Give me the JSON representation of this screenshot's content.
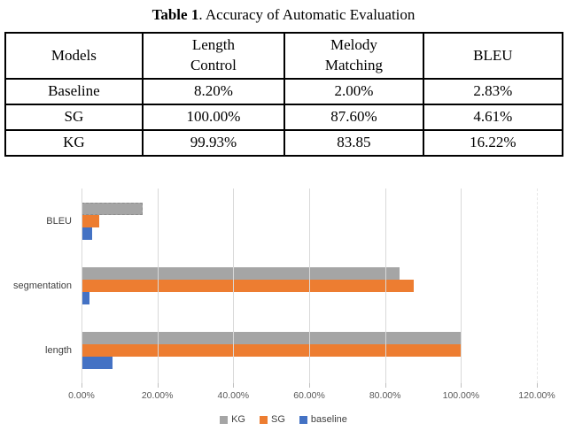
{
  "table": {
    "caption_label": "Table 1",
    "caption_text": ". Accuracy of Automatic Evaluation",
    "headers": [
      [
        "Models"
      ],
      [
        "Length",
        "Control"
      ],
      [
        "Melody",
        "Matching"
      ],
      [
        "BLEU"
      ]
    ],
    "rows": [
      {
        "model": "Baseline",
        "length_control": "8.20%",
        "melody_matching": "2.00%",
        "bleu": "2.83%"
      },
      {
        "model": "SG",
        "length_control": "100.00%",
        "melody_matching": "87.60%",
        "bleu": "4.61%"
      },
      {
        "model": "KG",
        "length_control": "99.93%",
        "melody_matching": "83.85",
        "bleu": "16.22%"
      }
    ]
  },
  "chart_data": {
    "type": "bar",
    "orientation": "horizontal",
    "title": "",
    "xlabel": "",
    "ylabel": "",
    "categories": [
      "BLEU",
      "segmentation",
      "length"
    ],
    "series": [
      {
        "name": "KG",
        "color": "#a5a5a5",
        "values": [
          16.22,
          83.85,
          99.93
        ]
      },
      {
        "name": "SG",
        "color": "#ed7d31",
        "values": [
          4.61,
          87.6,
          100.0
        ]
      },
      {
        "name": "baseline",
        "color": "#4472c4",
        "values": [
          2.83,
          2.0,
          8.2
        ]
      }
    ],
    "xlim": [
      0,
      120
    ],
    "x_ticks": [
      "0.00%",
      "20.00%",
      "40.00%",
      "60.00%",
      "80.00%",
      "100.00%",
      "120.00%"
    ],
    "grid": true,
    "legend_position": "bottom",
    "legend": [
      "KG",
      "SG",
      "baseline"
    ],
    "selected_bar": {
      "category": "BLEU",
      "series": "KG"
    },
    "colors": {
      "gridline": "#d9d9d9",
      "axis_tick": "#bfbfbf",
      "tick_label": "#595959",
      "category_label": "#404040"
    }
  }
}
